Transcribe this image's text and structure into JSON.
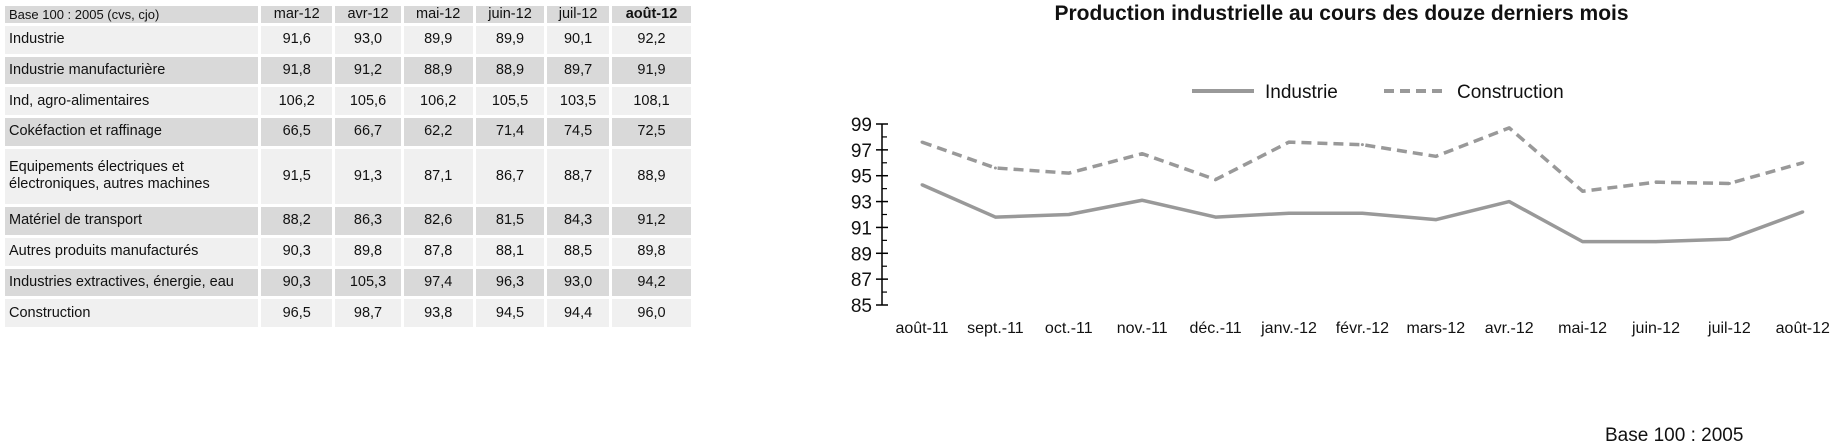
{
  "table": {
    "base_label": "Base 100 : 2005 (cvs, cjo)",
    "columns": [
      {
        "label": "mar-12",
        "bold": false
      },
      {
        "label": "avr-12",
        "bold": false
      },
      {
        "label": "mai-12",
        "bold": false
      },
      {
        "label": "juin-12",
        "bold": false
      },
      {
        "label": "juil-12",
        "bold": false
      },
      {
        "label": "août-12",
        "bold": true
      }
    ],
    "rows": [
      {
        "label": "Industrie",
        "values": [
          "91,6",
          "93,0",
          "89,9",
          "89,9",
          "90,1",
          "92,2"
        ]
      },
      {
        "label": "Industrie manufacturière",
        "values": [
          "91,8",
          "91,2",
          "88,9",
          "88,9",
          "89,7",
          "91,9"
        ]
      },
      {
        "label": "Ind, agro-alimentaires",
        "values": [
          "106,2",
          "105,6",
          "106,2",
          "105,5",
          "103,5",
          "108,1"
        ]
      },
      {
        "label": "Cokéfaction et raffinage",
        "values": [
          "66,5",
          "66,7",
          "62,2",
          "71,4",
          "74,5",
          "72,5"
        ]
      },
      {
        "label": "Equipements électriques et électroniques, autres machines",
        "values": [
          "91,5",
          "91,3",
          "87,1",
          "86,7",
          "88,7",
          "88,9"
        ]
      },
      {
        "label": "Matériel de transport",
        "values": [
          "88,2",
          "86,3",
          "82,6",
          "81,5",
          "84,3",
          "91,2"
        ]
      },
      {
        "label": "Autres produits manufacturés",
        "values": [
          "90,3",
          "89,8",
          "87,8",
          "88,1",
          "88,5",
          "89,8"
        ]
      },
      {
        "label": "Industries extractives, énergie, eau",
        "values": [
          "90,3",
          "105,3",
          "97,4",
          "96,3",
          "93,0",
          "94,2"
        ]
      },
      {
        "label": "Construction",
        "values": [
          "96,5",
          "98,7",
          "93,8",
          "94,5",
          "94,4",
          "96,0"
        ]
      }
    ]
  },
  "footnote": "Base 100 : 2005",
  "chart_data": {
    "type": "line",
    "title": "Production industrielle au cours des douze derniers mois",
    "xlabel": "",
    "ylabel": "",
    "ylim": [
      85,
      99
    ],
    "yticks": [
      85,
      87,
      89,
      91,
      93,
      95,
      97,
      99
    ],
    "legend_position": "top",
    "grid": false,
    "categories": [
      "août-11",
      "sept.-11",
      "oct.-11",
      "nov.-11",
      "déc.-11",
      "janv.-12",
      "févr.-12",
      "mars-12",
      "avr.-12",
      "mai-12",
      "juin-12",
      "juil-12",
      "août-12"
    ],
    "series": [
      {
        "name": "Industrie",
        "style": "solid",
        "color": "#999999",
        "values": [
          94.3,
          91.8,
          92.0,
          93.1,
          91.8,
          92.1,
          92.1,
          91.6,
          93.0,
          89.9,
          89.9,
          90.1,
          92.2
        ]
      },
      {
        "name": "Construction",
        "style": "dashed",
        "color": "#999999",
        "values": [
          97.6,
          95.6,
          95.2,
          96.7,
          94.7,
          97.6,
          97.4,
          96.5,
          98.7,
          93.8,
          94.5,
          94.4,
          96.0
        ]
      }
    ]
  }
}
